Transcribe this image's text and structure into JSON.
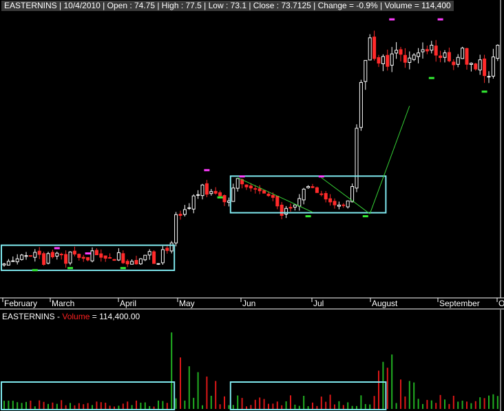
{
  "header": {
    "symbol": "EASTERNINS",
    "date": "10/4/2010",
    "open": "Open : 74.75",
    "high": "High : 77.5",
    "low": "Low : 73.1",
    "close": "Close : 73.7125",
    "change": "Change = -0.9%",
    "volume": "Volume = 114,400",
    "text": "EASTERNINS | 10/4/2010 | Open : 74.75 | High : 77.5 | Low : 73.1 | Close : 73.7125 | Change = -0.9% | Volume = 114,400"
  },
  "volume_panel": {
    "symbol_part": "EASTERNINS - ",
    "label_part": "Volume",
    "value_part": " = 114,400.00"
  },
  "colors": {
    "up": "#ffffff",
    "down": "#ff2a2a",
    "box": "#7fe8ee",
    "trend": "#36d336",
    "marker_high": "#ff3cff",
    "marker_low": "#33ee33",
    "vol_up": "#22b022",
    "vol_down": "#dd1818"
  },
  "chart_data": {
    "type": "candlestick",
    "title": "EASTERNINS",
    "x_tick_labels": [
      "February",
      "March",
      "April",
      "May",
      "Jun",
      "Jul",
      "August",
      "September",
      "O"
    ],
    "y_range": [
      28,
      82
    ],
    "volume_range": [
      0,
      300000
    ],
    "price_path": [
      [
        1,
        34.5
      ],
      [
        4,
        35.8
      ],
      [
        6,
        35.8
      ],
      [
        7,
        36.3
      ],
      [
        8,
        35.9
      ],
      [
        9,
        34.1
      ],
      [
        10,
        36.1
      ],
      [
        11,
        35.5
      ],
      [
        12,
        36.1
      ],
      [
        13,
        36.1
      ],
      [
        14,
        34.4
      ],
      [
        15,
        36.4
      ],
      [
        16,
        36.0
      ],
      [
        17,
        35.7
      ],
      [
        18,
        35.2
      ],
      [
        19,
        35.0
      ],
      [
        20,
        36.5
      ],
      [
        21,
        35.8
      ],
      [
        22,
        35.7
      ],
      [
        23,
        35.3
      ],
      [
        24,
        35.1
      ],
      [
        25,
        34.8
      ],
      [
        26,
        36.3
      ],
      [
        27,
        34.4
      ],
      [
        28,
        34.0
      ],
      [
        29,
        34.5
      ],
      [
        30,
        34.3
      ],
      [
        31,
        35.3
      ],
      [
        32,
        35.7
      ],
      [
        33,
        36.7
      ],
      [
        34,
        34.5
      ],
      [
        35,
        34.4
      ],
      [
        36,
        37.0
      ],
      [
        37,
        36.9
      ],
      [
        38,
        38.0
      ],
      [
        39,
        43.6
      ],
      [
        40,
        43.3
      ],
      [
        41,
        44.3
      ],
      [
        42,
        45.3
      ],
      [
        43,
        47.4
      ],
      [
        44,
        47.4
      ],
      [
        45,
        49.3
      ],
      [
        46,
        47.6
      ],
      [
        47,
        48.3
      ],
      [
        48,
        47.4
      ],
      [
        49,
        47.6
      ],
      [
        50,
        46.2
      ],
      [
        51,
        46.4
      ],
      [
        52,
        48.6
      ],
      [
        53,
        50.2
      ],
      [
        54,
        49.5
      ],
      [
        55,
        49.2
      ],
      [
        56,
        48.8
      ],
      [
        57,
        48.7
      ],
      [
        58,
        48.3
      ],
      [
        59,
        47.8
      ],
      [
        60,
        47.4
      ],
      [
        61,
        46.9
      ],
      [
        62,
        45.2
      ],
      [
        63,
        43.7
      ],
      [
        64,
        44.5
      ],
      [
        65,
        44.9
      ],
      [
        66,
        45.2
      ],
      [
        67,
        46.6
      ],
      [
        68,
        48.4
      ],
      [
        69,
        49.0
      ],
      [
        70,
        48.8
      ],
      [
        71,
        47.7
      ],
      [
        72,
        47.2
      ],
      [
        73,
        46.7
      ],
      [
        74,
        45.9
      ],
      [
        75,
        45.7
      ],
      [
        76,
        45.4
      ],
      [
        77,
        45.5
      ],
      [
        78,
        46.4
      ],
      [
        79,
        49.1
      ],
      [
        80,
        59.9
      ],
      [
        81,
        68.4
      ],
      [
        82,
        73.6
      ],
      [
        83,
        77.0
      ],
      [
        84,
        74.0
      ],
      [
        85,
        72.7
      ],
      [
        86,
        74.3
      ],
      [
        87,
        72.5
      ],
      [
        88,
        73.7
      ],
      [
        89,
        75.4
      ],
      [
        90,
        74.1
      ],
      [
        91,
        73.2
      ],
      [
        92,
        73.6
      ],
      [
        93,
        74.0
      ],
      [
        94,
        75.0
      ],
      [
        95,
        74.6
      ],
      [
        96,
        74.4
      ],
      [
        97,
        75.5
      ],
      [
        98,
        73.6
      ],
      [
        99,
        73.1
      ],
      [
        100,
        74.2
      ],
      [
        101,
        73.3
      ],
      [
        102,
        72.9
      ],
      [
        103,
        74.0
      ],
      [
        104,
        76.0
      ]
    ],
    "rectangles": [
      {
        "from": 0,
        "to": 38,
        "low": 33.0,
        "high": 37.8
      },
      {
        "from": 52,
        "to": 86,
        "low": 44.0,
        "high": 51.0
      }
    ],
    "trendlines": [
      {
        "x1": 53,
        "y1": 50.7,
        "x2": 70,
        "y2": 44.1
      },
      {
        "x1": 72,
        "y1": 50.7,
        "x2": 83,
        "y2": 43.8
      },
      {
        "x1": 83,
        "y1": 43.8,
        "x2": 92,
        "y2": 64.4
      }
    ],
    "swing_highs": [
      {
        "x": 12,
        "price": 37.3
      },
      {
        "x": 19,
        "price": 36.3
      },
      {
        "x": 46,
        "price": 52.2
      },
      {
        "x": 54,
        "price": 51.0
      },
      {
        "x": 72,
        "price": 51.0
      },
      {
        "x": 88,
        "price": 81.0
      },
      {
        "x": 99,
        "price": 81.0
      }
    ],
    "swing_lows": [
      {
        "x": 7,
        "price": 33.1
      },
      {
        "x": 15,
        "price": 33.5
      },
      {
        "x": 27,
        "price": 33.5
      },
      {
        "x": 49,
        "price": 47.0
      },
      {
        "x": 69,
        "price": 43.4
      },
      {
        "x": 82,
        "price": 43.4
      },
      {
        "x": 97,
        "price": 69.8
      },
      {
        "x": 109,
        "price": 67.2
      }
    ],
    "volume_spikes": [
      {
        "x": 38,
        "volume": 260000
      },
      {
        "x": 40,
        "volume": 175000
      },
      {
        "x": 42,
        "volume": 145000
      },
      {
        "x": 44,
        "volume": 125000
      },
      {
        "x": 46,
        "volume": 110000
      },
      {
        "x": 48,
        "volume": 95000
      },
      {
        "x": 85,
        "volume": 130000
      },
      {
        "x": 86,
        "volume": 160000
      },
      {
        "x": 87,
        "volume": 140000
      },
      {
        "x": 88,
        "volume": 185000
      },
      {
        "x": 90,
        "volume": 100000
      },
      {
        "x": 92,
        "volume": 95000
      },
      {
        "x": 93,
        "volume": 90000
      }
    ]
  }
}
